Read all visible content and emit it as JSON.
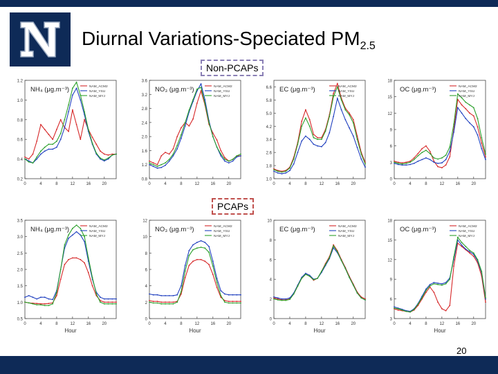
{
  "title": {
    "main": "Diurnal Variations-Speciated PM",
    "sub": "2.5"
  },
  "labels": {
    "non_pcaps": "Non-PCAPs",
    "pcaps": "PCAPs"
  },
  "page_number": "20",
  "colors": {
    "ACM2": "#d62728",
    "YSU": "#1f3fbf",
    "MYJ": "#2ca02c",
    "brand": "#0e2a57"
  },
  "legend_entries": [
    "NAM_ACM2",
    "NAM_YSU",
    "NAM_MYJ"
  ],
  "chart_data": [
    {
      "type": "line",
      "panel": "Non-PCAPs",
      "species": "NH4",
      "label": "NH₄ (μg.m⁻³)",
      "x": [
        0,
        1,
        2,
        3,
        4,
        5,
        6,
        7,
        8,
        9,
        10,
        11,
        12,
        13,
        14,
        15,
        16,
        17,
        18,
        19,
        20,
        21,
        22,
        23
      ],
      "ylim": [
        0.2,
        1.2
      ],
      "yticks": [
        "0.2",
        "0.4",
        "0.6",
        "0.8",
        "1.0",
        "1.2"
      ],
      "xticks": [
        "0",
        "4",
        "8",
        "12",
        "16",
        "20"
      ],
      "xlabel": "",
      "series": [
        {
          "name": "NAM_ACM2",
          "values": [
            0.42,
            0.4,
            0.45,
            0.58,
            0.75,
            0.7,
            0.65,
            0.6,
            0.7,
            0.8,
            0.72,
            0.68,
            0.9,
            0.75,
            0.6,
            0.8,
            0.7,
            0.62,
            0.55,
            0.48,
            0.45,
            0.44,
            0.45,
            0.45
          ]
        },
        {
          "name": "NAM_YSU",
          "values": [
            0.4,
            0.38,
            0.36,
            0.4,
            0.45,
            0.48,
            0.5,
            0.5,
            0.52,
            0.6,
            0.72,
            0.88,
            1.05,
            1.12,
            1.0,
            0.85,
            0.68,
            0.55,
            0.45,
            0.4,
            0.38,
            0.4,
            0.44,
            0.45
          ]
        },
        {
          "name": "NAM_MYJ",
          "values": [
            0.4,
            0.37,
            0.36,
            0.42,
            0.48,
            0.52,
            0.55,
            0.55,
            0.58,
            0.66,
            0.8,
            0.95,
            1.12,
            1.18,
            1.05,
            0.88,
            0.7,
            0.56,
            0.46,
            0.41,
            0.39,
            0.41,
            0.44,
            0.45
          ]
        }
      ]
    },
    {
      "type": "line",
      "panel": "Non-PCAPs",
      "species": "NO3",
      "label": "NO₃ (μg.m⁻³)",
      "x": [
        0,
        1,
        2,
        3,
        4,
        5,
        6,
        7,
        8,
        9,
        10,
        11,
        12,
        13,
        14,
        15,
        16,
        17,
        18,
        19,
        20,
        21,
        22,
        23
      ],
      "ylim": [
        0.8,
        3.6
      ],
      "yticks": [
        "0.8",
        "1.2",
        "1.6",
        "2.0",
        "2.4",
        "2.8",
        "3.2",
        "3.6"
      ],
      "xticks": [
        "0",
        "4",
        "8",
        "12",
        "16",
        "20"
      ],
      "xlabel": "",
      "series": [
        {
          "name": "NAM_ACM2",
          "values": [
            1.3,
            1.25,
            1.2,
            1.45,
            1.55,
            1.5,
            1.65,
            2.0,
            2.25,
            2.4,
            2.3,
            2.5,
            2.95,
            3.3,
            2.9,
            2.35,
            2.1,
            1.9,
            1.6,
            1.4,
            1.3,
            1.35,
            1.45,
            1.45
          ]
        },
        {
          "name": "NAM_YSU",
          "values": [
            1.2,
            1.15,
            1.1,
            1.12,
            1.18,
            1.3,
            1.45,
            1.65,
            1.95,
            2.3,
            2.7,
            3.0,
            3.3,
            3.5,
            3.05,
            2.45,
            2.0,
            1.7,
            1.45,
            1.3,
            1.25,
            1.3,
            1.42,
            1.45
          ]
        },
        {
          "name": "NAM_MYJ",
          "values": [
            1.25,
            1.2,
            1.15,
            1.2,
            1.25,
            1.35,
            1.5,
            1.75,
            2.05,
            2.4,
            2.75,
            3.05,
            3.35,
            3.4,
            2.95,
            2.4,
            2.0,
            1.7,
            1.5,
            1.35,
            1.3,
            1.35,
            1.45,
            1.5
          ]
        }
      ]
    },
    {
      "type": "line",
      "panel": "Non-PCAPs",
      "species": "EC",
      "label": "EC (μg.m⁻³)",
      "x": [
        0,
        1,
        2,
        3,
        4,
        5,
        6,
        7,
        8,
        9,
        10,
        11,
        12,
        13,
        14,
        15,
        16,
        17,
        18,
        19,
        20,
        21,
        22,
        23
      ],
      "ylim": [
        1.0,
        7.0
      ],
      "yticks": [
        "1.0",
        "1.8",
        "2.6",
        "3.4",
        "4.2",
        "5.0",
        "5.8",
        "6.6"
      ],
      "xticks": [
        "0",
        "4",
        "8",
        "12",
        "16",
        "20"
      ],
      "xlabel": "",
      "series": [
        {
          "name": "NAM_ACM2",
          "values": [
            1.6,
            1.5,
            1.45,
            1.5,
            1.7,
            2.3,
            3.2,
            4.5,
            5.2,
            4.6,
            3.7,
            3.5,
            3.5,
            4.0,
            4.9,
            6.2,
            6.8,
            5.9,
            5.3,
            5.0,
            4.6,
            3.6,
            2.6,
            2.0
          ]
        },
        {
          "name": "NAM_YSU",
          "values": [
            1.45,
            1.35,
            1.3,
            1.35,
            1.5,
            1.9,
            2.6,
            3.3,
            3.6,
            3.4,
            3.1,
            3.0,
            2.95,
            3.2,
            3.8,
            4.8,
            5.9,
            5.2,
            4.6,
            4.1,
            3.6,
            2.9,
            2.2,
            1.7
          ]
        },
        {
          "name": "NAM_MYJ",
          "values": [
            1.55,
            1.45,
            1.4,
            1.45,
            1.65,
            2.2,
            3.1,
            4.2,
            4.7,
            4.2,
            3.5,
            3.4,
            3.4,
            3.9,
            4.8,
            6.0,
            6.6,
            5.8,
            5.2,
            4.9,
            4.4,
            3.4,
            2.5,
            1.9
          ]
        }
      ]
    },
    {
      "type": "line",
      "panel": "Non-PCAPs",
      "species": "OC",
      "label": "OC (μg.m⁻³)",
      "x": [
        0,
        1,
        2,
        3,
        4,
        5,
        6,
        7,
        8,
        9,
        10,
        11,
        12,
        13,
        14,
        15,
        16,
        17,
        18,
        19,
        20,
        21,
        22,
        23
      ],
      "ylim": [
        0,
        18
      ],
      "yticks": [
        "0",
        "3",
        "6",
        "9",
        "12",
        "15",
        "18"
      ],
      "xticks": [
        "0",
        "4",
        "8",
        "12",
        "16",
        "20"
      ],
      "xlabel": "",
      "series": [
        {
          "name": "NAM_ACM2",
          "values": [
            3.2,
            3.0,
            2.9,
            3.0,
            3.2,
            3.8,
            4.6,
            5.5,
            6.0,
            5.0,
            3.2,
            2.2,
            2.0,
            2.5,
            4.0,
            9.0,
            14.5,
            13.5,
            12.8,
            12.0,
            11.5,
            9.5,
            6.5,
            4.0
          ]
        },
        {
          "name": "NAM_YSU",
          "values": [
            2.8,
            2.6,
            2.5,
            2.5,
            2.6,
            2.8,
            3.2,
            3.5,
            3.8,
            3.5,
            3.0,
            2.8,
            2.9,
            3.5,
            5.0,
            8.5,
            13.0,
            12.0,
            11.0,
            10.2,
            9.5,
            8.0,
            5.5,
            3.5
          ]
        },
        {
          "name": "NAM_MYJ",
          "values": [
            3.0,
            2.8,
            2.7,
            2.8,
            3.0,
            3.5,
            4.2,
            4.8,
            5.2,
            4.6,
            3.8,
            3.6,
            3.8,
            4.3,
            5.8,
            10.0,
            15.5,
            14.8,
            14.0,
            13.5,
            13.0,
            11.0,
            7.5,
            4.5
          ]
        }
      ]
    },
    {
      "type": "line",
      "panel": "PCAPs",
      "species": "NH4",
      "label": "NH₄ (μg.m⁻³)",
      "x": [
        0,
        1,
        2,
        3,
        4,
        5,
        6,
        7,
        8,
        9,
        10,
        11,
        12,
        13,
        14,
        15,
        16,
        17,
        18,
        19,
        20,
        21,
        22,
        23
      ],
      "ylim": [
        0.5,
        3.5
      ],
      "yticks": [
        "0.5",
        "1.0",
        "1.5",
        "2.0",
        "2.5",
        "3.0",
        "3.5"
      ],
      "xticks": [
        "0",
        "4",
        "8",
        "12",
        "16",
        "20"
      ],
      "xlabel": "Hour",
      "series": [
        {
          "name": "NAM_ACM2",
          "values": [
            1.0,
            0.98,
            0.97,
            0.96,
            0.95,
            0.95,
            0.96,
            0.98,
            1.2,
            1.7,
            2.15,
            2.3,
            2.35,
            2.35,
            2.3,
            2.2,
            1.9,
            1.5,
            1.2,
            1.05,
            1.0,
            1.0,
            1.0,
            1.0
          ]
        },
        {
          "name": "NAM_YSU",
          "values": [
            1.15,
            1.2,
            1.15,
            1.1,
            1.15,
            1.15,
            1.1,
            1.08,
            1.35,
            2.0,
            2.65,
            2.95,
            3.05,
            3.15,
            3.05,
            2.85,
            2.25,
            1.7,
            1.3,
            1.15,
            1.1,
            1.1,
            1.1,
            1.1
          ]
        },
        {
          "name": "NAM_MYJ",
          "values": [
            1.0,
            0.98,
            0.95,
            0.92,
            0.92,
            0.9,
            0.9,
            0.95,
            1.3,
            2.0,
            2.75,
            3.05,
            3.25,
            3.35,
            3.25,
            3.0,
            2.35,
            1.75,
            1.25,
            1.0,
            0.95,
            0.95,
            0.95,
            0.95
          ]
        }
      ]
    },
    {
      "type": "line",
      "panel": "PCAPs",
      "species": "NO3",
      "label": "NO₃ (μg.m⁻³)",
      "x": [
        0,
        1,
        2,
        3,
        4,
        5,
        6,
        7,
        8,
        9,
        10,
        11,
        12,
        13,
        14,
        15,
        16,
        17,
        18,
        19,
        20,
        21,
        22,
        23
      ],
      "ylim": [
        0,
        12
      ],
      "yticks": [
        "0",
        "2",
        "4",
        "6",
        "8",
        "10",
        "12"
      ],
      "xticks": [
        "0",
        "4",
        "8",
        "12",
        "16",
        "20"
      ],
      "xlabel": "Hour",
      "series": [
        {
          "name": "NAM_ACM2",
          "values": [
            2.2,
            2.1,
            2.1,
            2.0,
            2.0,
            2.0,
            2.0,
            2.1,
            3.0,
            5.0,
            6.5,
            7.0,
            7.2,
            7.2,
            7.0,
            6.6,
            5.4,
            3.8,
            2.6,
            2.2,
            2.1,
            2.1,
            2.1,
            2.1
          ]
        },
        {
          "name": "NAM_YSU",
          "values": [
            3.0,
            2.9,
            2.9,
            2.8,
            2.8,
            2.8,
            2.8,
            2.9,
            4.0,
            6.5,
            8.3,
            9.0,
            9.3,
            9.5,
            9.3,
            8.8,
            7.0,
            4.9,
            3.4,
            3.0,
            2.9,
            2.9,
            2.9,
            2.9
          ]
        },
        {
          "name": "NAM_MYJ",
          "values": [
            2.0,
            1.9,
            1.9,
            1.8,
            1.8,
            1.8,
            1.8,
            2.0,
            3.3,
            5.8,
            7.7,
            8.4,
            8.6,
            8.7,
            8.6,
            8.1,
            6.4,
            4.4,
            2.8,
            2.0,
            1.9,
            1.9,
            1.9,
            1.9
          ]
        }
      ]
    },
    {
      "type": "line",
      "panel": "PCAPs",
      "species": "EC",
      "label": "EC (μg.m⁻³)",
      "x": [
        0,
        1,
        2,
        3,
        4,
        5,
        6,
        7,
        8,
        9,
        10,
        11,
        12,
        13,
        14,
        15,
        16,
        17,
        18,
        19,
        20,
        21,
        22,
        23
      ],
      "ylim": [
        0,
        10
      ],
      "yticks": [
        "0",
        "2",
        "4",
        "6",
        "8",
        "10"
      ],
      "xticks": [
        "0",
        "4",
        "8",
        "12",
        "16",
        "20"
      ],
      "xlabel": "Hour",
      "series": [
        {
          "name": "NAM_ACM2",
          "values": [
            2.1,
            2.0,
            1.9,
            1.9,
            2.0,
            2.5,
            3.3,
            4.1,
            4.5,
            4.3,
            3.9,
            4.1,
            4.8,
            5.6,
            6.3,
            7.5,
            6.9,
            6.0,
            5.2,
            4.3,
            3.5,
            2.7,
            2.2,
            2.0
          ]
        },
        {
          "name": "NAM_YSU",
          "values": [
            2.2,
            2.1,
            2.0,
            2.0,
            2.1,
            2.6,
            3.4,
            4.2,
            4.6,
            4.4,
            4.0,
            4.1,
            4.7,
            5.4,
            6.1,
            7.2,
            6.7,
            5.9,
            5.1,
            4.2,
            3.4,
            2.6,
            2.1,
            1.9
          ]
        },
        {
          "name": "NAM_MYJ",
          "values": [
            2.0,
            1.9,
            1.85,
            1.85,
            1.95,
            2.5,
            3.3,
            4.1,
            4.5,
            4.3,
            3.95,
            4.1,
            4.8,
            5.5,
            6.2,
            7.4,
            6.8,
            5.9,
            5.1,
            4.2,
            3.4,
            2.6,
            2.1,
            1.9
          ]
        }
      ]
    },
    {
      "type": "line",
      "panel": "PCAPs",
      "species": "OC",
      "label": "OC (μg.m⁻³)",
      "x": [
        0,
        1,
        2,
        3,
        4,
        5,
        6,
        7,
        8,
        9,
        10,
        11,
        12,
        13,
        14,
        15,
        16,
        17,
        18,
        19,
        20,
        21,
        22,
        23
      ],
      "ylim": [
        3,
        18
      ],
      "yticks": [
        "3",
        "6",
        "9",
        "12",
        "15",
        "18"
      ],
      "xticks": [
        "0",
        "4",
        "8",
        "12",
        "16",
        "20"
      ],
      "xlabel": "Hour",
      "series": [
        {
          "name": "NAM_ACM2",
          "values": [
            4.5,
            4.3,
            4.2,
            4.1,
            4.0,
            4.3,
            5.0,
            6.0,
            7.0,
            7.8,
            7.0,
            5.5,
            4.5,
            4.2,
            5.0,
            11.0,
            14.5,
            14.0,
            13.5,
            13.0,
            12.5,
            11.5,
            9.5,
            5.5
          ]
        },
        {
          "name": "NAM_YSU",
          "values": [
            4.8,
            4.6,
            4.4,
            4.2,
            4.1,
            4.5,
            5.3,
            6.4,
            7.5,
            8.2,
            8.5,
            8.4,
            8.3,
            8.5,
            9.2,
            12.0,
            15.0,
            14.2,
            13.6,
            13.2,
            12.8,
            11.8,
            10.0,
            6.0
          ]
        },
        {
          "name": "NAM_MYJ",
          "values": [
            4.6,
            4.5,
            4.3,
            4.1,
            4.0,
            4.4,
            5.2,
            6.2,
            7.3,
            8.0,
            8.3,
            8.2,
            8.1,
            8.3,
            9.0,
            12.4,
            15.4,
            14.6,
            14.0,
            13.4,
            13.0,
            12.0,
            10.2,
            6.2
          ]
        }
      ]
    }
  ]
}
